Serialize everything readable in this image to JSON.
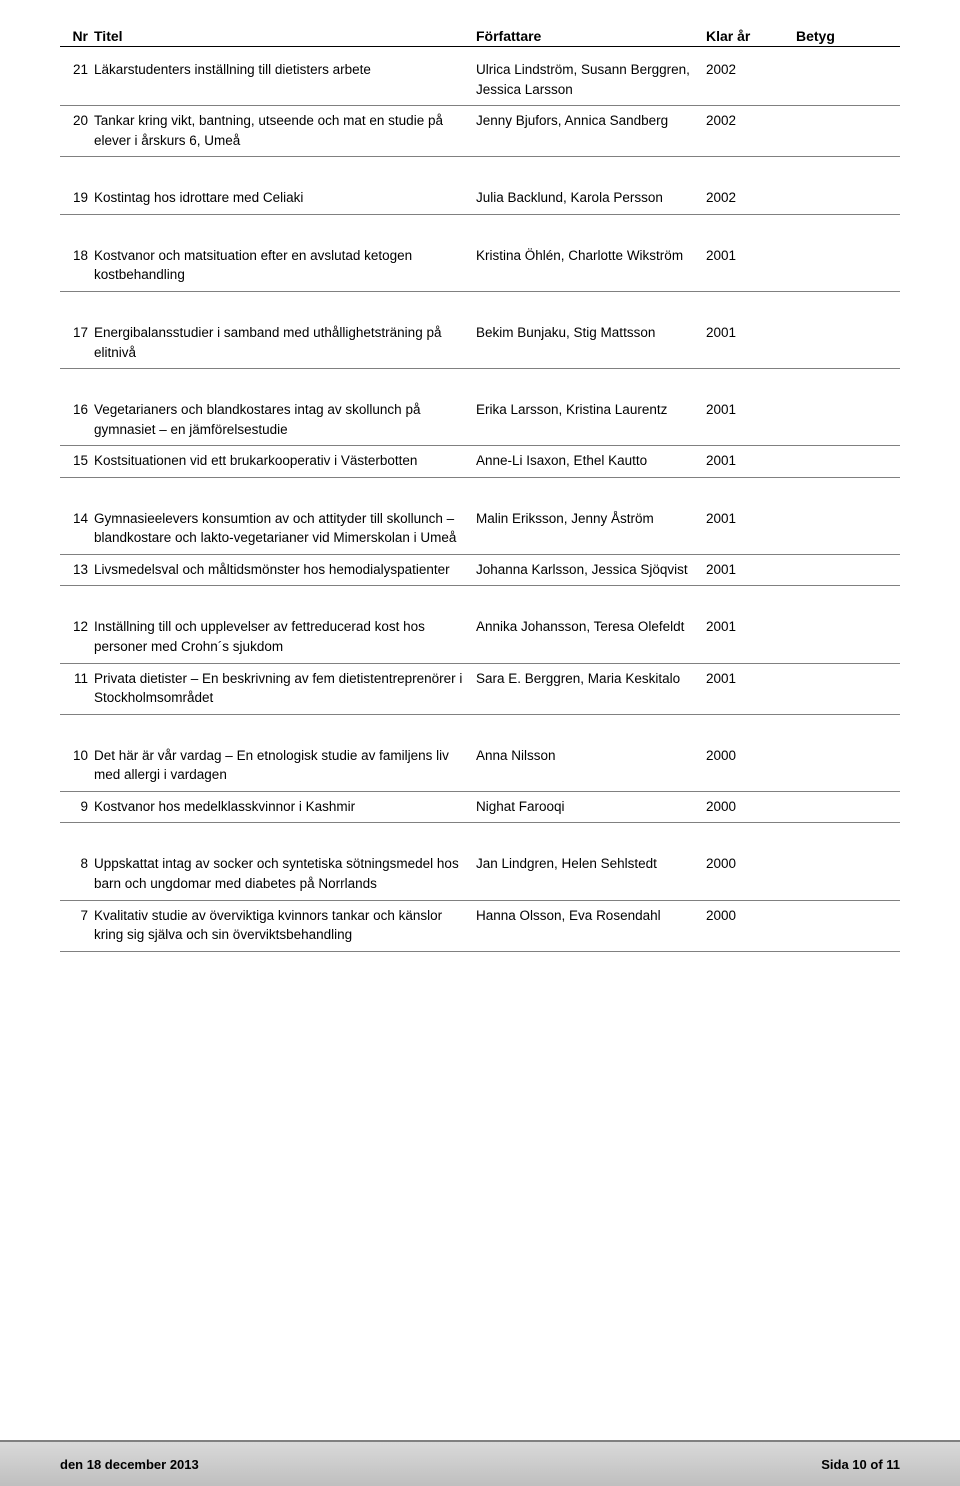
{
  "header": {
    "nr": "Nr",
    "title": "Titel",
    "author": "Författare",
    "year": "Klar år",
    "grade": "Betyg"
  },
  "groups": [
    [
      {
        "nr": "21",
        "title": "Läkarstudenters inställning till dietisters arbete",
        "author": "Ulrica Lindström, Susann Berggren, Jessica Larsson",
        "year": "2002"
      },
      {
        "nr": "20",
        "title": "Tankar kring vikt, bantning, utseende och mat en studie på elever i årskurs 6, Umeå",
        "author": "Jenny Bjufors, Annica Sandberg",
        "year": "2002"
      }
    ],
    [
      {
        "nr": "19",
        "title": "Kostintag hos idrottare med Celiaki",
        "author": "Julia Backlund, Karola Persson",
        "year": "2002"
      }
    ],
    [
      {
        "nr": "18",
        "title": "Kostvanor och matsituation efter en avslutad ketogen kostbehandling",
        "author": "Kristina Öhlén, Charlotte Wikström",
        "year": "2001"
      }
    ],
    [
      {
        "nr": "17",
        "title": "Energibalansstudier i samband med uthållighetsträning på elitnivå",
        "author": "Bekim Bunjaku, Stig Mattsson",
        "year": "2001"
      }
    ],
    [
      {
        "nr": "16",
        "title": "Vegetarianers och blandkostares intag av skollunch på gymnasiet – en jämförelsestudie",
        "author": "Erika Larsson, Kristina Laurentz",
        "year": "2001"
      },
      {
        "nr": "15",
        "title": "Kostsituationen vid ett brukarkooperativ i Västerbotten",
        "author": "Anne-Li Isaxon, Ethel Kautto",
        "year": "2001"
      }
    ],
    [
      {
        "nr": "14",
        "title": "Gymnasieelevers konsumtion av och attityder till skollunch – blandkostare och lakto-vegetarianer vid Mimerskolan i Umeå",
        "author": "Malin Eriksson, Jenny Åström",
        "year": "2001"
      },
      {
        "nr": "13",
        "title": "Livsmedelsval och måltidsmönster hos hemodialyspatienter",
        "author": "Johanna Karlsson, Jessica Sjöqvist",
        "year": "2001"
      }
    ],
    [
      {
        "nr": "12",
        "title": "Inställning till och upplevelser av fettreducerad kost hos personer med Crohn´s sjukdom",
        "author": "Annika Johansson, Teresa Olefeldt",
        "year": "2001"
      },
      {
        "nr": "11",
        "title": "Privata dietister – En beskrivning av fem dietistentreprenörer i Stockholmsområdet",
        "author": "Sara E. Berggren, Maria Keskitalo",
        "year": "2001"
      }
    ],
    [
      {
        "nr": "10",
        "title": "Det här är vår vardag – En etnologisk studie av familjens liv med allergi i vardagen",
        "author": "Anna Nilsson",
        "year": "2000"
      },
      {
        "nr": "9",
        "title": "Kostvanor hos medelklasskvinnor i Kashmir",
        "author": "Nighat Farooqi",
        "year": "2000"
      }
    ],
    [
      {
        "nr": "8",
        "title": "Uppskattat intag av socker och syntetiska sötningsmedel hos barn och ungdomar med diabetes på Norrlands",
        "author": "Jan Lindgren, Helen Sehlstedt",
        "year": "2000"
      },
      {
        "nr": "7",
        "title": "Kvalitativ studie av överviktiga kvinnors tankar och känslor kring sig själva och sin överviktsbehandling",
        "author": "Hanna Olsson, Eva Rosendahl",
        "year": "2000"
      }
    ]
  ],
  "footer": {
    "date": "den 18 december 2013",
    "page": "Sida 10 of 11"
  }
}
